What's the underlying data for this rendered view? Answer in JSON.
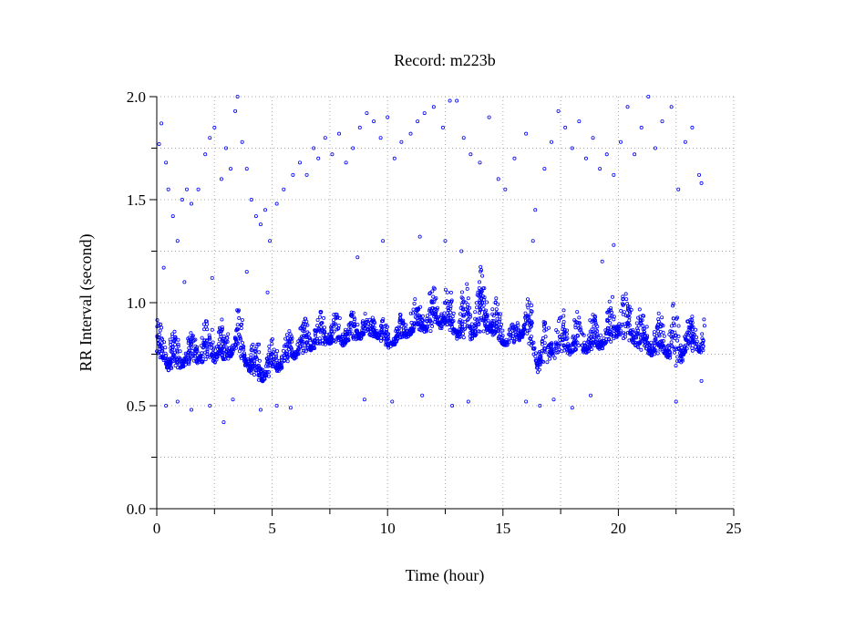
{
  "chart_data": {
    "type": "scatter",
    "title": "Record:  m223b",
    "xlabel": "Time (hour)",
    "ylabel": "RR Interval (second)",
    "xlim": [
      0,
      25
    ],
    "ylim": [
      0,
      2
    ],
    "xticks": [
      0,
      5,
      10,
      15,
      20,
      25
    ],
    "xtick_labels": [
      "0",
      "5",
      "10",
      "15",
      "20",
      "25"
    ],
    "xminor": [
      2.5,
      7.5,
      12.5,
      17.5,
      22.5
    ],
    "yticks": [
      0,
      0.5,
      1,
      1.5,
      2
    ],
    "ytick_labels": [
      "0.0",
      "0.5",
      "1.0",
      "1.5",
      "2.0"
    ],
    "yminor": [
      0.25,
      0.75,
      1.25,
      1.75
    ],
    "grid": true,
    "marker_color": "#0000ff",
    "series": [
      {
        "name": "RR interval",
        "band_hours": [
          0,
          0.5,
          1,
          1.5,
          2,
          2.5,
          3,
          3.5,
          4,
          4.5,
          5,
          5.5,
          6,
          6.5,
          7,
          7.5,
          8,
          8.5,
          9,
          9.5,
          10,
          10.5,
          11,
          11.5,
          12,
          12.5,
          13,
          13.5,
          14,
          14.5,
          15,
          15.5,
          16,
          16.5,
          17,
          17.5,
          18,
          18.5,
          19,
          19.5,
          20,
          20.5,
          21,
          21.5,
          22,
          22.5,
          23,
          23.5
        ],
        "band_low": [
          0.68,
          0.62,
          0.65,
          0.66,
          0.66,
          0.65,
          0.68,
          0.7,
          0.62,
          0.57,
          0.6,
          0.65,
          0.7,
          0.72,
          0.75,
          0.76,
          0.75,
          0.78,
          0.8,
          0.8,
          0.75,
          0.78,
          0.8,
          0.82,
          0.8,
          0.85,
          0.78,
          0.75,
          0.78,
          0.8,
          0.75,
          0.78,
          0.8,
          0.6,
          0.68,
          0.7,
          0.7,
          0.72,
          0.72,
          0.75,
          0.78,
          0.75,
          0.72,
          0.7,
          0.7,
          0.6,
          0.72,
          0.72
        ],
        "band_high": [
          0.98,
          0.92,
          0.85,
          0.88,
          0.95,
          1.0,
          0.92,
          1.03,
          0.88,
          0.82,
          0.85,
          0.88,
          0.9,
          0.95,
          0.98,
          1.0,
          0.98,
          0.98,
          1.0,
          1.0,
          0.9,
          0.95,
          1.05,
          1.05,
          1.1,
          1.1,
          1.05,
          1.15,
          1.2,
          1.1,
          0.95,
          0.9,
          1.08,
          0.95,
          0.95,
          0.98,
          1.0,
          0.95,
          0.98,
          1.0,
          1.15,
          1.12,
          1.0,
          0.95,
          1.0,
          1.05,
          0.95,
          0.95
        ],
        "outliers": [
          [
            0.1,
            1.77
          ],
          [
            0.2,
            1.87
          ],
          [
            0.4,
            1.68
          ],
          [
            0.5,
            1.55
          ],
          [
            0.7,
            1.42
          ],
          [
            0.9,
            1.3
          ],
          [
            1.1,
            1.5
          ],
          [
            1.3,
            1.55
          ],
          [
            1.5,
            1.48
          ],
          [
            1.8,
            1.55
          ],
          [
            2.1,
            1.72
          ],
          [
            2.3,
            1.8
          ],
          [
            2.5,
            1.85
          ],
          [
            2.8,
            1.6
          ],
          [
            3.0,
            1.75
          ],
          [
            3.2,
            1.65
          ],
          [
            3.4,
            1.93
          ],
          [
            3.5,
            2.0
          ],
          [
            3.7,
            1.78
          ],
          [
            3.9,
            1.65
          ],
          [
            4.1,
            1.5
          ],
          [
            4.3,
            1.42
          ],
          [
            4.5,
            1.38
          ],
          [
            4.7,
            1.45
          ],
          [
            4.9,
            1.3
          ],
          [
            5.2,
            1.48
          ],
          [
            5.5,
            1.55
          ],
          [
            5.9,
            1.62
          ],
          [
            6.2,
            1.68
          ],
          [
            6.5,
            1.62
          ],
          [
            6.8,
            1.75
          ],
          [
            7.0,
            1.7
          ],
          [
            7.3,
            1.8
          ],
          [
            7.6,
            1.72
          ],
          [
            7.9,
            1.82
          ],
          [
            8.2,
            1.68
          ],
          [
            8.5,
            1.75
          ],
          [
            8.8,
            1.85
          ],
          [
            9.1,
            1.92
          ],
          [
            9.4,
            1.88
          ],
          [
            9.7,
            1.8
          ],
          [
            10.0,
            1.9
          ],
          [
            10.3,
            1.7
          ],
          [
            10.6,
            1.78
          ],
          [
            11.0,
            1.82
          ],
          [
            11.3,
            1.88
          ],
          [
            11.6,
            1.92
          ],
          [
            12.0,
            1.95
          ],
          [
            12.4,
            1.85
          ],
          [
            12.7,
            1.98
          ],
          [
            13.0,
            1.98
          ],
          [
            13.3,
            1.8
          ],
          [
            13.6,
            1.72
          ],
          [
            14.0,
            1.68
          ],
          [
            14.4,
            1.9
          ],
          [
            14.8,
            1.6
          ],
          [
            15.1,
            1.55
          ],
          [
            15.5,
            1.7
          ],
          [
            16.0,
            1.82
          ],
          [
            16.4,
            1.45
          ],
          [
            16.8,
            1.65
          ],
          [
            17.1,
            1.78
          ],
          [
            17.4,
            1.93
          ],
          [
            17.7,
            1.85
          ],
          [
            18.0,
            1.75
          ],
          [
            18.3,
            1.88
          ],
          [
            18.6,
            1.7
          ],
          [
            18.9,
            1.8
          ],
          [
            19.2,
            1.65
          ],
          [
            19.5,
            1.72
          ],
          [
            19.8,
            1.62
          ],
          [
            20.1,
            1.78
          ],
          [
            20.4,
            1.95
          ],
          [
            20.7,
            1.72
          ],
          [
            21.0,
            1.85
          ],
          [
            21.3,
            2.0
          ],
          [
            21.6,
            1.75
          ],
          [
            21.9,
            1.88
          ],
          [
            22.3,
            1.95
          ],
          [
            22.6,
            1.55
          ],
          [
            22.9,
            1.78
          ],
          [
            23.2,
            1.85
          ],
          [
            23.5,
            1.62
          ],
          [
            23.6,
            1.58
          ],
          [
            0.3,
            1.17
          ],
          [
            1.2,
            1.1
          ],
          [
            2.4,
            1.12
          ],
          [
            3.9,
            1.15
          ],
          [
            4.8,
            1.05
          ],
          [
            8.7,
            1.22
          ],
          [
            9.8,
            1.3
          ],
          [
            11.4,
            1.32
          ],
          [
            12.5,
            1.3
          ],
          [
            13.2,
            1.25
          ],
          [
            16.3,
            1.3
          ],
          [
            19.3,
            1.2
          ],
          [
            19.8,
            1.28
          ],
          [
            0.4,
            0.5
          ],
          [
            0.9,
            0.52
          ],
          [
            1.5,
            0.48
          ],
          [
            2.3,
            0.5
          ],
          [
            2.9,
            0.42
          ],
          [
            3.3,
            0.53
          ],
          [
            4.5,
            0.48
          ],
          [
            5.2,
            0.5
          ],
          [
            5.8,
            0.49
          ],
          [
            9.0,
            0.53
          ],
          [
            10.2,
            0.52
          ],
          [
            11.5,
            0.55
          ],
          [
            12.8,
            0.5
          ],
          [
            13.5,
            0.52
          ],
          [
            16.0,
            0.52
          ],
          [
            16.6,
            0.5
          ],
          [
            17.2,
            0.53
          ],
          [
            18.0,
            0.49
          ],
          [
            18.8,
            0.55
          ],
          [
            22.5,
            0.52
          ],
          [
            23.6,
            0.62
          ]
        ]
      }
    ]
  }
}
